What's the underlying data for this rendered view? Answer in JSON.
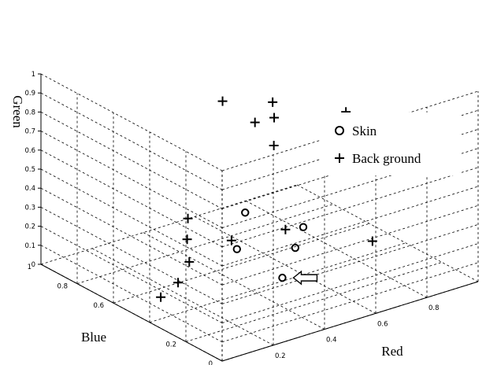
{
  "chart_data": {
    "type": "scatter3d",
    "xlabel": "Red",
    "ylabel": "Blue",
    "zlabel": "Green",
    "xlim": [
      0,
      1
    ],
    "ylim": [
      0,
      1
    ],
    "zlim": [
      0,
      1
    ],
    "grid": true,
    "x_ticks": [
      "0",
      "0.2",
      "0.4",
      "0.6",
      "0.8"
    ],
    "y_ticks": [
      "0",
      "0.2",
      "0.6",
      "0.8",
      "1"
    ],
    "z_ticks": [
      "0",
      "0.1",
      "0.2",
      "0.3",
      "0.4",
      "0.5",
      "0.6",
      "0.7",
      "0.8",
      "0.9",
      "1"
    ],
    "legend": {
      "placement": "right",
      "entries": [
        "Skin",
        "Back ground"
      ]
    },
    "series": [
      {
        "name": "Skin",
        "marker": "circle",
        "points": [
          {
            "red": 0.6,
            "blue": 0.4,
            "green": 0.25
          },
          {
            "red": 0.55,
            "blue": 0.65,
            "green": 0.22
          },
          {
            "red": 0.59,
            "blue": 0.43,
            "green": 0.13
          },
          {
            "red": 0.44,
            "blue": 0.54,
            "green": 0.13
          },
          {
            "red": 0.49,
            "blue": 0.36,
            "green": 0.05
          }
        ]
      },
      {
        "name": "Back ground",
        "marker": "plus",
        "points": [
          {
            "red": 0.49,
            "blue": 0.69,
            "green": 0.81
          },
          {
            "red": 0.53,
            "blue": 0.47,
            "green": 0.9
          },
          {
            "red": 0.71,
            "blue": 0.32,
            "green": 0.85
          },
          {
            "red": 0.56,
            "blue": 0.61,
            "green": 0.71
          },
          {
            "red": 0.55,
            "blue": 0.49,
            "green": 0.8
          },
          {
            "red": 0.57,
            "blue": 0.52,
            "green": 0.63
          },
          {
            "red": 0.39,
            "blue": 0.74,
            "green": 0.21
          },
          {
            "red": 0.38,
            "blue": 0.73,
            "green": 0.11
          },
          {
            "red": 0.44,
            "blue": 0.57,
            "green": 0.16
          },
          {
            "red": 0.58,
            "blue": 0.47,
            "green": 0.21
          },
          {
            "red": 0.75,
            "blue": 0.23,
            "green": 0.2
          },
          {
            "red": 0.36,
            "blue": 0.69,
            "green": 0.02
          },
          {
            "red": 0.21,
            "blue": 0.54,
            "green": 0.05
          },
          {
            "red": 0.1,
            "blue": 0.48,
            "green": 0.05
          }
        ]
      }
    ],
    "annotations": [
      {
        "type": "arrow",
        "points_to": {
          "red": 0.49,
          "blue": 0.36,
          "green": 0.05
        }
      }
    ]
  }
}
